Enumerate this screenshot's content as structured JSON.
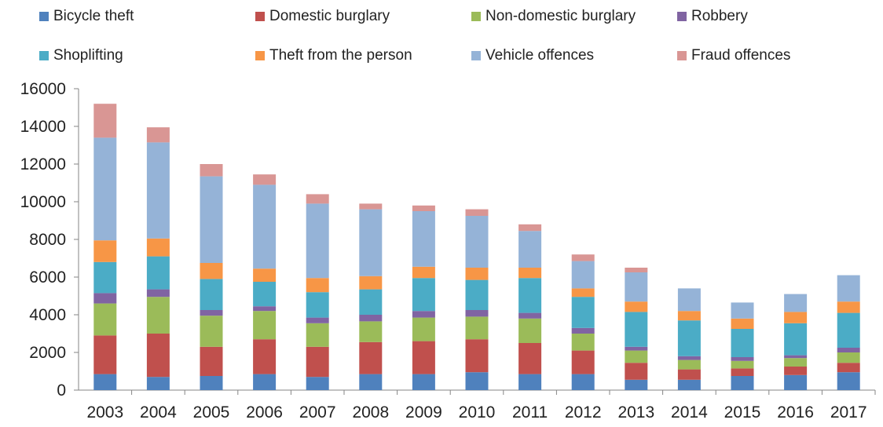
{
  "chart_data": {
    "type": "bar",
    "stacked": true,
    "categories": [
      "2003",
      "2004",
      "2005",
      "2006",
      "2007",
      "2008",
      "2009",
      "2010",
      "2011",
      "2012",
      "2013",
      "2014",
      "2015",
      "2016",
      "2017"
    ],
    "ylim": [
      0,
      16000
    ],
    "yticks": [
      "0",
      "2000",
      "4000",
      "6000",
      "8000",
      "10000",
      "12000",
      "14000",
      "16000"
    ],
    "grid": false,
    "legend_position": "top",
    "series": [
      {
        "name": "Bicycle theft",
        "color": "#4f81bd",
        "values": [
          850,
          700,
          750,
          850,
          700,
          850,
          850,
          950,
          850,
          850,
          550,
          550,
          750,
          800,
          950
        ]
      },
      {
        "name": "Domestic burglary",
        "color": "#c0504d",
        "values": [
          2050,
          2300,
          1550,
          1850,
          1600,
          1700,
          1750,
          1750,
          1650,
          1250,
          900,
          550,
          400,
          450,
          500
        ]
      },
      {
        "name": "Non-domestic burglary",
        "color": "#9bbb59",
        "values": [
          1700,
          1950,
          1650,
          1500,
          1250,
          1100,
          1250,
          1200,
          1300,
          900,
          650,
          500,
          400,
          450,
          550
        ]
      },
      {
        "name": "Robbery",
        "color": "#8064a2",
        "values": [
          550,
          400,
          300,
          250,
          300,
          350,
          350,
          350,
          300,
          300,
          200,
          200,
          200,
          150,
          250
        ]
      },
      {
        "name": "Shoplifting",
        "color": "#4bacc6",
        "values": [
          1650,
          1750,
          1650,
          1300,
          1350,
          1350,
          1750,
          1600,
          1850,
          1650,
          1850,
          1900,
          1500,
          1700,
          1850
        ]
      },
      {
        "name": "Theft from the person",
        "color": "#f79646",
        "values": [
          1150,
          950,
          850,
          700,
          750,
          700,
          600,
          650,
          550,
          450,
          550,
          500,
          550,
          600,
          600
        ]
      },
      {
        "name": "Vehicle offences",
        "color": "#95b3d7",
        "values": [
          5450,
          5100,
          4600,
          4450,
          3950,
          3550,
          2950,
          2750,
          1950,
          1450,
          1550,
          1200,
          850,
          950,
          1400
        ]
      },
      {
        "name": "Fraud offences",
        "color": "#d99694",
        "values": [
          1800,
          800,
          650,
          550,
          500,
          300,
          300,
          350,
          350,
          350,
          250,
          0,
          0,
          0,
          0
        ]
      }
    ]
  }
}
